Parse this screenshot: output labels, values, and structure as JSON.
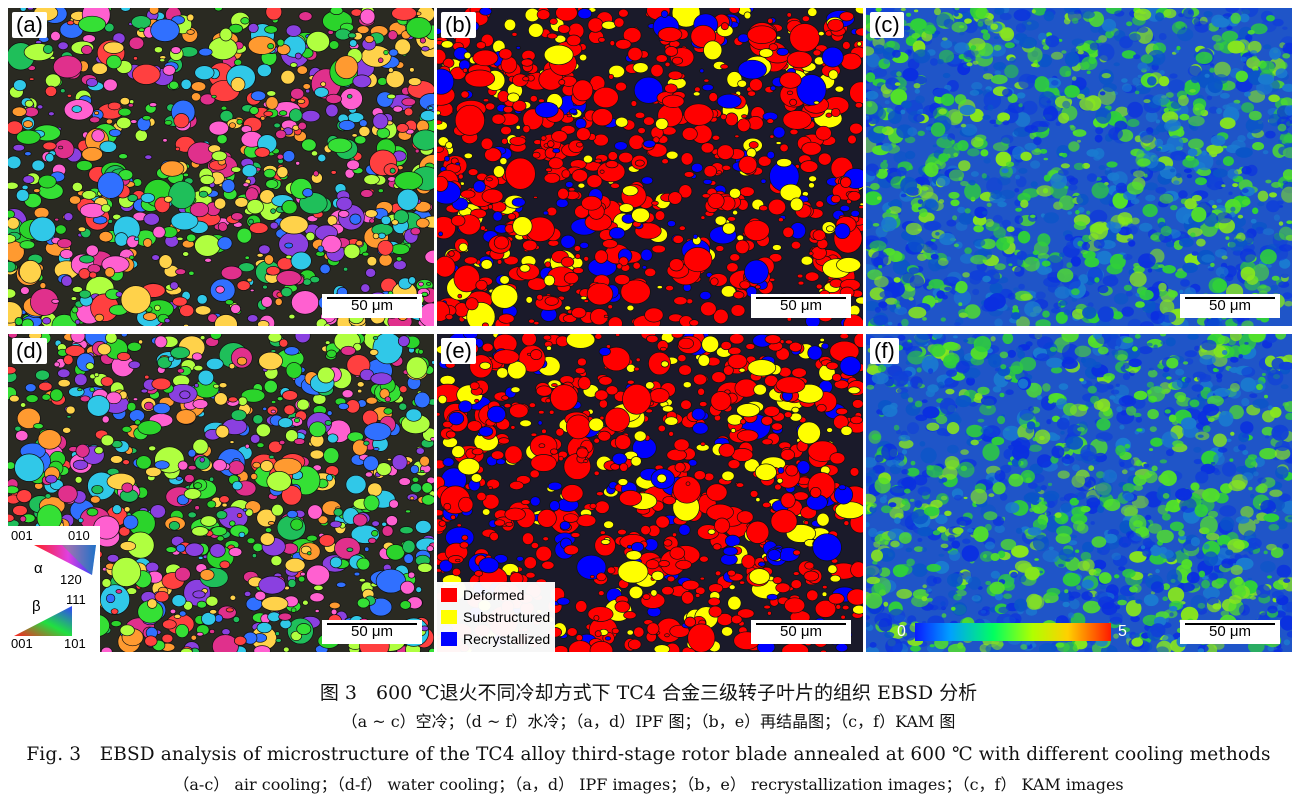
{
  "panels": [
    {
      "id": "a",
      "label": "(a)",
      "scale": "50 μm",
      "kind": "ipf"
    },
    {
      "id": "b",
      "label": "(b)",
      "scale": "50 μm",
      "kind": "rex"
    },
    {
      "id": "c",
      "label": "(c)",
      "scale": "50 μm",
      "kind": "kam"
    },
    {
      "id": "d",
      "label": "(d)",
      "scale": "50 μm",
      "kind": "ipf"
    },
    {
      "id": "e",
      "label": "(e)",
      "scale": "50 μm",
      "kind": "rex"
    },
    {
      "id": "f",
      "label": "(f)",
      "scale": "50 μm",
      "kind": "kam"
    }
  ],
  "ipf_legend": {
    "alpha": {
      "symbol": "α",
      "c1": "001",
      "c2": "010",
      "c3": "120"
    },
    "beta": {
      "symbol": "β",
      "c1": "111",
      "c2": "001",
      "c3": "101"
    }
  },
  "rex_legend": {
    "items": [
      {
        "label": "Deformed",
        "color": "#ff0000"
      },
      {
        "label": "Substructured",
        "color": "#ffff00"
      },
      {
        "label": "Recrystallized",
        "color": "#0000ff"
      }
    ]
  },
  "kam_legend": {
    "min": "0",
    "max": "5"
  },
  "caption": {
    "zh_title": "图 3　600 ℃退火不同冷却方式下 TC4 合金三级转子叶片的组织 EBSD 分析",
    "zh_sub": "（a ~ c）空冷；（d ~ f）水冷；（a，d）IPF 图；（b，e）再结晶图；（c，f）KAM 图",
    "en_title": "Fig. 3　EBSD analysis of microstructure of the TC4 alloy third-stage rotor blade annealed at 600 ℃ with different cooling methods",
    "en_sub": "（a-c） air cooling；（d-f） water cooling；（a，d） IPF images；（b，e） recrystallization images；（c，f） KAM images"
  },
  "colors": {
    "ipf_palette": [
      "#2bd42b",
      "#35e035",
      "#1fbf5a",
      "#e0308c",
      "#ff4040",
      "#ff9a30",
      "#ffd24a",
      "#8a40e0",
      "#3070ff",
      "#30c8e8",
      "#b0ff40",
      "#ff60d0"
    ],
    "rex_palette": [
      "#ff0000",
      "#ff0000",
      "#ff0000",
      "#ff0000",
      "#ffff00",
      "#0000ff"
    ],
    "kam_palette": [
      "#0a2fe0",
      "#1040d8",
      "#0a55c8",
      "#1a7ad0",
      "#2fd03a",
      "#52e02a",
      "#88e61e"
    ]
  }
}
